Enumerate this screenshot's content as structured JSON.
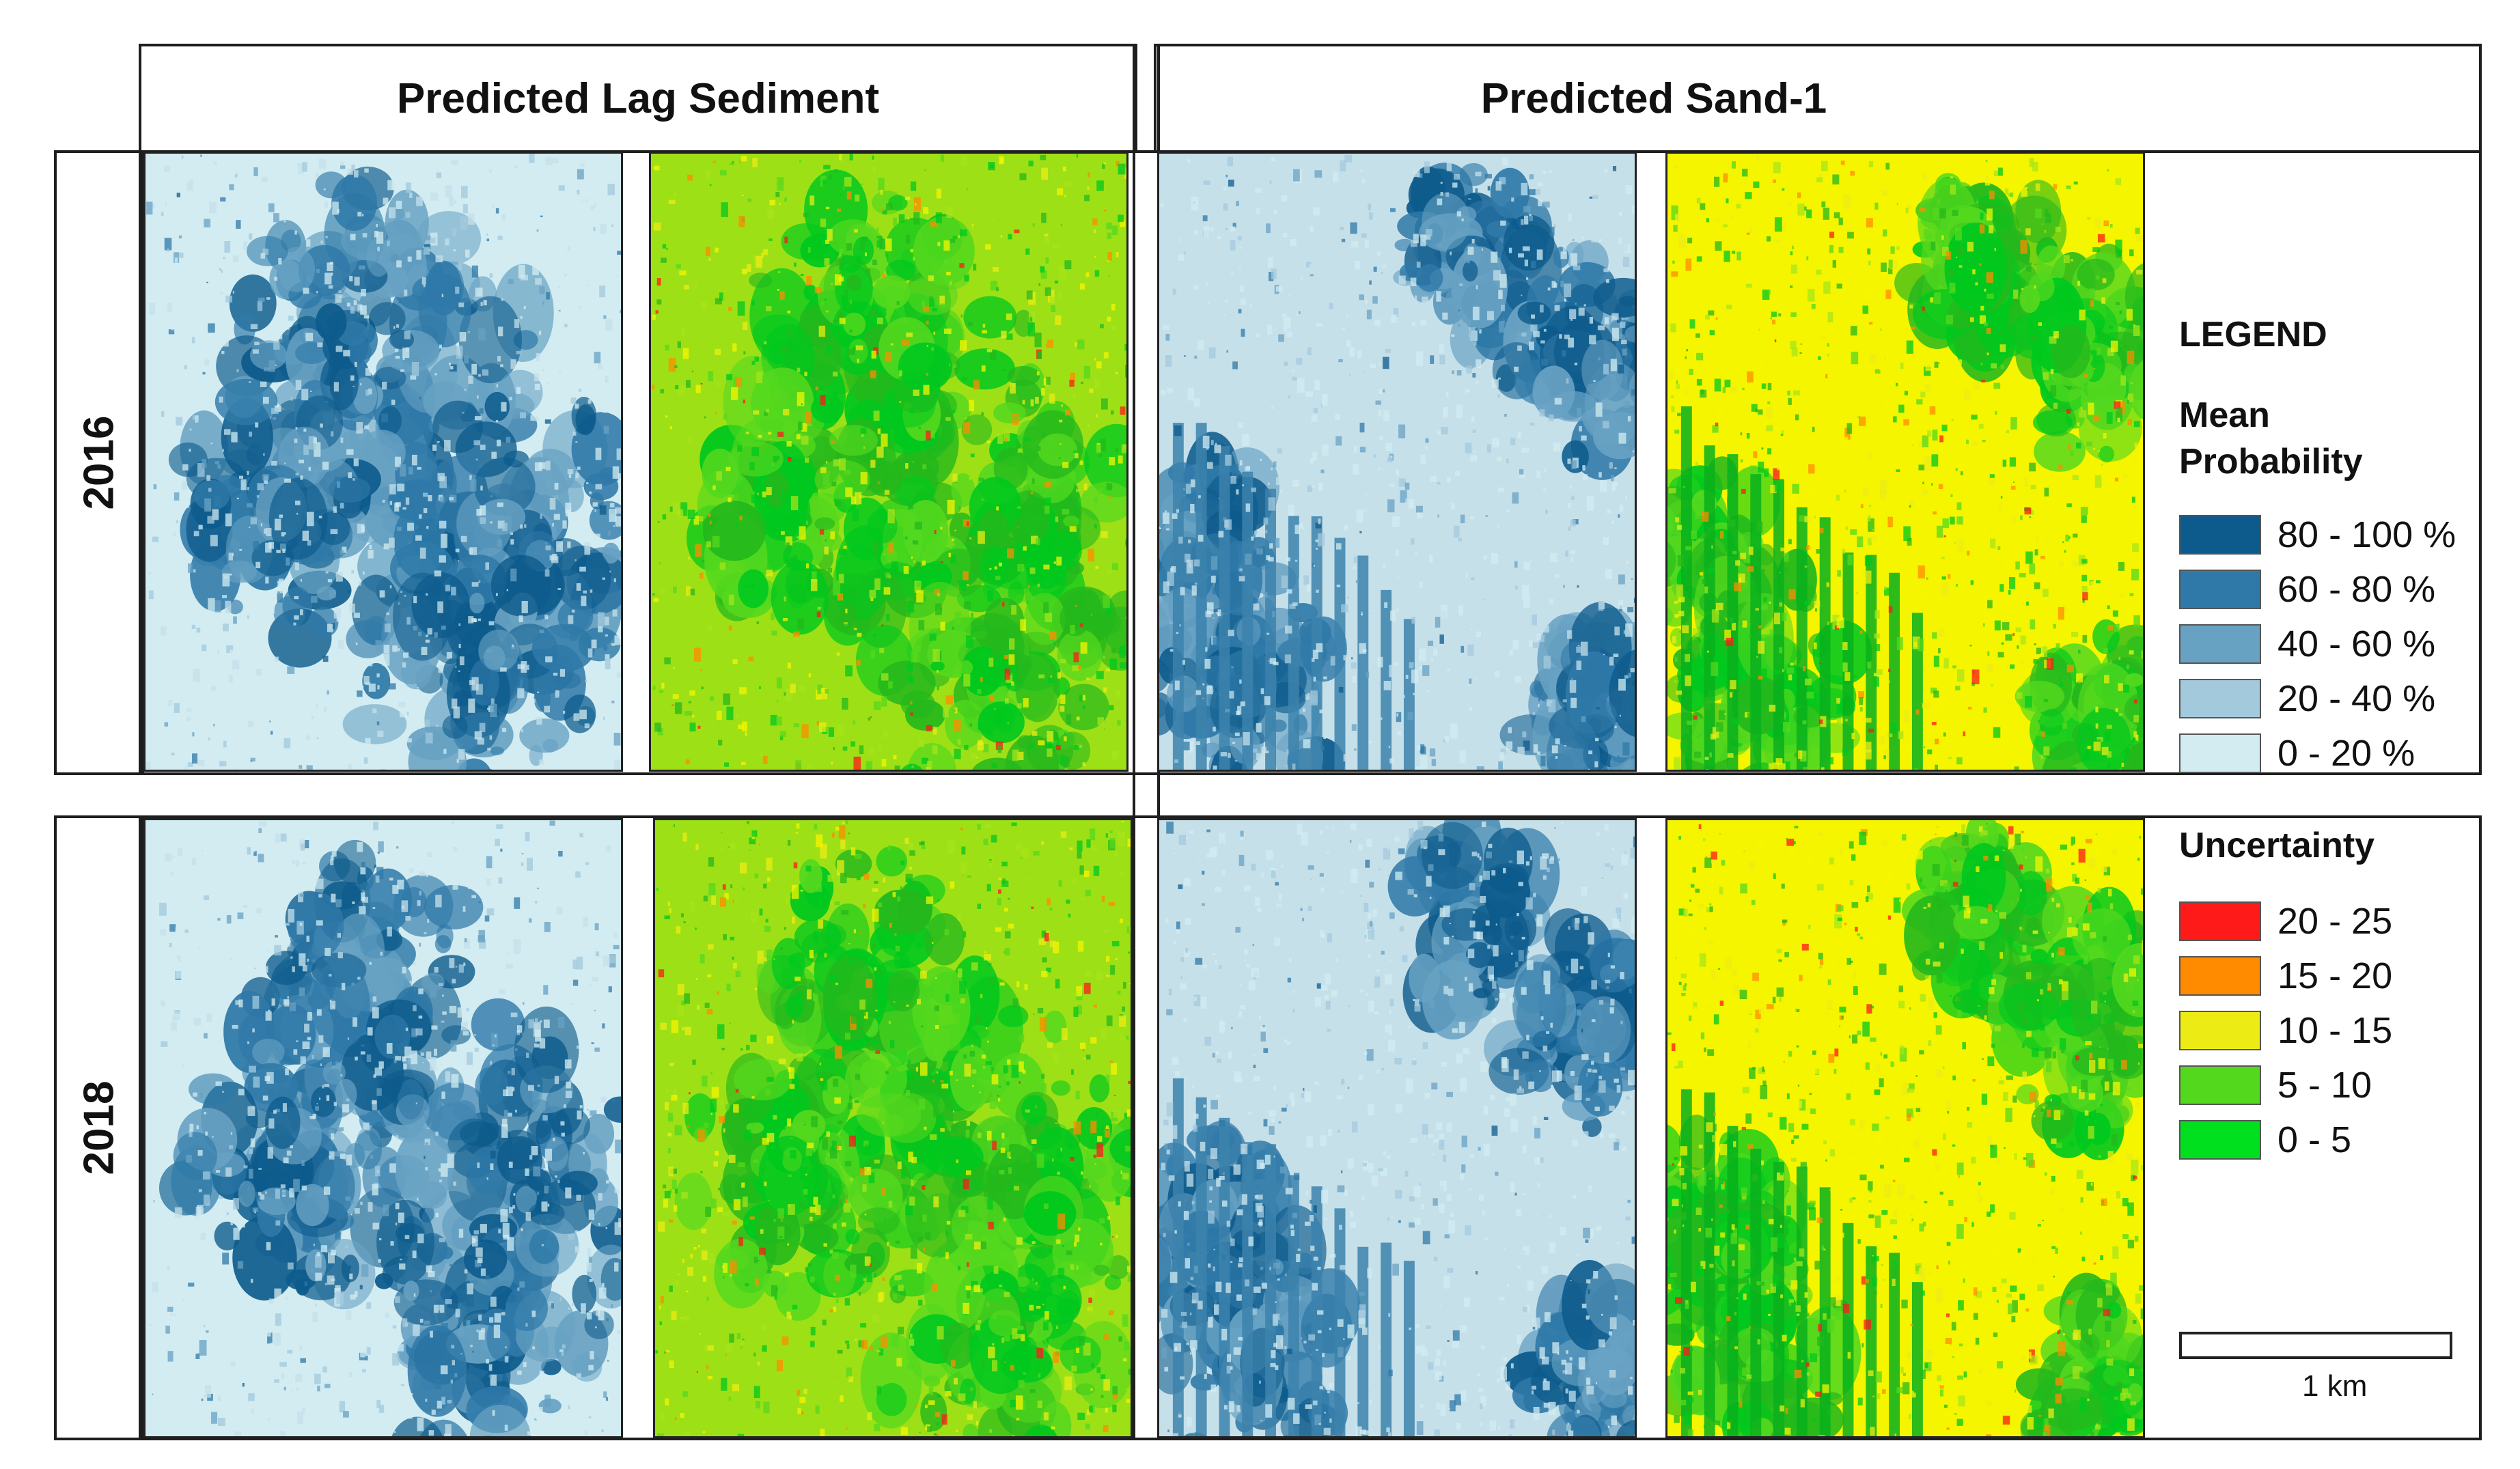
{
  "headers": {
    "lag": "Predicted Lag Sediment",
    "sand": "Predicted Sand-1"
  },
  "years": [
    "2016",
    "2018"
  ],
  "legend": {
    "title": "LEGEND",
    "mean_title_1": "Mean",
    "mean_title_2": "Probability",
    "mean_classes": [
      {
        "label": "80 - 100 %",
        "color": "#0d5b8c"
      },
      {
        "label": "60 - 80 %",
        "color": "#2f79a8"
      },
      {
        "label": "40 - 60 %",
        "color": "#68a2c3"
      },
      {
        "label": "20 - 40 %",
        "color": "#a3c9dd"
      },
      {
        "label": "0 - 20 %",
        "color": "#d2ecf2"
      }
    ],
    "uncertainty_title": "Uncertainty",
    "uncertainty_classes": [
      {
        "label": "20 - 25",
        "color": "#ff1a1a"
      },
      {
        "label": "15 - 20",
        "color": "#ff8c00"
      },
      {
        "label": "10 - 15",
        "color": "#ecec14"
      },
      {
        "label": "5 - 10",
        "color": "#54d81e"
      },
      {
        "label": "0 - 5",
        "color": "#00e01e"
      }
    ]
  },
  "scale_label": "1 km",
  "maps": [
    {
      "name": "lag-2016-probability",
      "kind": "prob",
      "pattern": "lag"
    },
    {
      "name": "lag-2016-uncertainty",
      "kind": "unc",
      "pattern": "lag"
    },
    {
      "name": "sand-2016-probability",
      "kind": "prob",
      "pattern": "sand"
    },
    {
      "name": "sand-2016-uncertainty",
      "kind": "unc",
      "pattern": "sand"
    },
    {
      "name": "lag-2018-probability",
      "kind": "prob",
      "pattern": "lag"
    },
    {
      "name": "lag-2018-uncertainty",
      "kind": "unc",
      "pattern": "lag"
    },
    {
      "name": "sand-2018-probability",
      "kind": "prob",
      "pattern": "sand"
    },
    {
      "name": "sand-2018-uncertainty",
      "kind": "unc",
      "pattern": "sand"
    }
  ]
}
